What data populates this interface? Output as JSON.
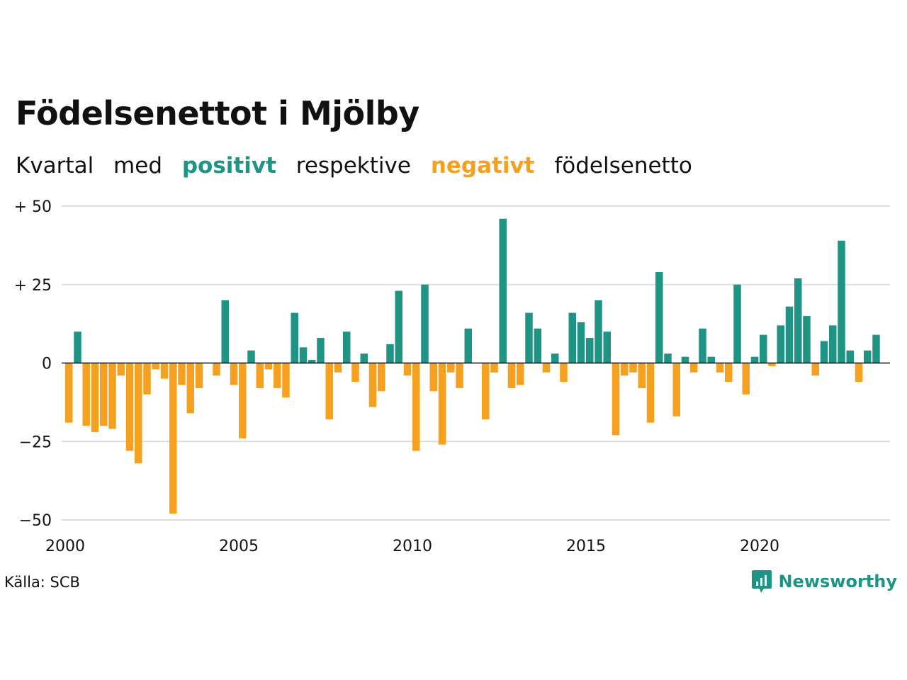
{
  "colors": {
    "positive": "#1f9485",
    "negative": "#f5a01e",
    "grid": "#dddddd",
    "axis": "#111111"
  },
  "header": {
    "title": "Födelsenettot i Mjölby",
    "subtitle": {
      "part1": "Kvartal",
      "part2": "med",
      "positive_word": "positivt",
      "part3": "respektive",
      "negative_word": "negativt",
      "part4": "födelsenetto"
    }
  },
  "footer": {
    "source": "Källa: SCB",
    "brand": "Newsworthy"
  },
  "chart_data": {
    "type": "bar",
    "start_year": 2000,
    "periods_per_year": 4,
    "values": [
      -19,
      10,
      -20,
      -22,
      -20,
      -21,
      -4,
      -28,
      -32,
      -10,
      -2,
      -5,
      -48,
      -7,
      -16,
      -8,
      0,
      -4,
      20,
      -7,
      -24,
      4,
      -8,
      -2,
      -8,
      -11,
      16,
      5,
      1,
      8,
      -18,
      -3,
      10,
      -6,
      3,
      -14,
      -9,
      6,
      23,
      -4,
      -28,
      25,
      -9,
      -26,
      -3,
      -8,
      11,
      0,
      -18,
      -3,
      46,
      -8,
      -7,
      16,
      11,
      -3,
      3,
      -6,
      16,
      13,
      8,
      20,
      10,
      -23,
      -4,
      -3,
      -8,
      -19,
      29,
      3,
      -17,
      2,
      -3,
      11,
      2,
      -3,
      -6,
      25,
      -10,
      2,
      9,
      -1,
      12,
      18,
      27,
      15,
      -4,
      7,
      12,
      39,
      4,
      -6,
      4,
      9
    ],
    "ylim": [
      -50,
      50
    ],
    "yticks": [
      {
        "value": 50,
        "label": "+ 50"
      },
      {
        "value": 25,
        "label": "+ 25"
      },
      {
        "value": 0,
        "label": "0"
      },
      {
        "value": -25,
        "label": "−25"
      },
      {
        "value": -50,
        "label": "−50"
      }
    ],
    "xticks": [
      {
        "value": 2000,
        "label": "2000"
      },
      {
        "value": 2005,
        "label": "2005"
      },
      {
        "value": 2010,
        "label": "2010"
      },
      {
        "value": 2015,
        "label": "2015"
      },
      {
        "value": 2020,
        "label": "2020"
      }
    ],
    "grid": true,
    "legend": "in-subtitle"
  }
}
